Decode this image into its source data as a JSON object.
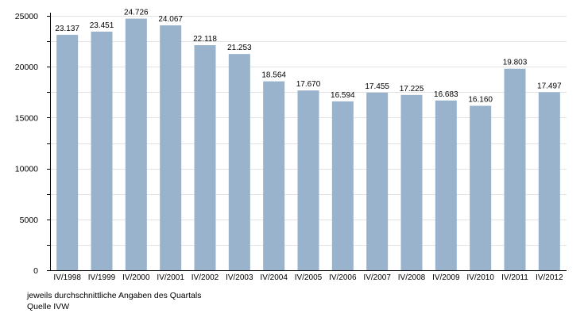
{
  "chart_data": {
    "type": "bar",
    "categories": [
      "IV/1998",
      "IV/1999",
      "IV/2000",
      "IV/2001",
      "IV/2002",
      "IV/2003",
      "IV/2004",
      "IV/2005",
      "IV/2006",
      "IV/2007",
      "IV/2008",
      "IV/2009",
      "IV/2010",
      "IV/2011",
      "IV/2012"
    ],
    "values": [
      23137,
      23451,
      24726,
      24067,
      22118,
      21253,
      18564,
      17670,
      16594,
      17455,
      17225,
      16683,
      16160,
      19803,
      17497
    ],
    "value_labels": [
      "23.137",
      "23.451",
      "24.726",
      "24.067",
      "22.118",
      "21.253",
      "18.564",
      "17.670",
      "16.594",
      "17.455",
      "17.225",
      "16.683",
      "16.160",
      "19.803",
      "17.497"
    ],
    "y_ticks": [
      0,
      5000,
      10000,
      15000,
      20000,
      25000
    ],
    "ylim": [
      0,
      25000
    ],
    "grid": true,
    "legend": "none",
    "bar_color": "#9ab3cc",
    "grid_color": "#e2e2e2"
  },
  "notes": {
    "line1": "jeweils durchschnittliche Angaben des Quartals",
    "line2": "Quelle IVW"
  }
}
